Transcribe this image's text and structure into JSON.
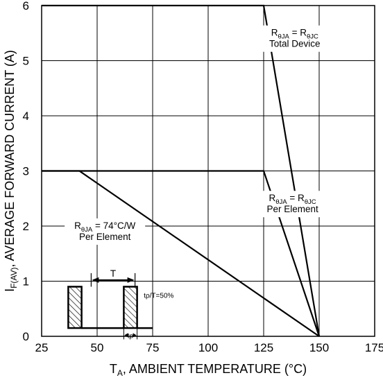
{
  "chart_data": {
    "type": "line",
    "xlabel": {
      "main": "T",
      "sub": "A",
      "rest": ", AMBIENT TEMPERATURE (°C)"
    },
    "ylabel": {
      "main": "I",
      "sub": "F(AV)",
      "rest": ", AVERAGE FORWARD CURRENT (A)"
    },
    "xlim": [
      25,
      175
    ],
    "ylim": [
      0,
      6
    ],
    "x_ticks": [
      25,
      50,
      75,
      100,
      125,
      150,
      175
    ],
    "y_ticks": [
      0,
      1,
      2,
      3,
      4,
      5,
      6
    ],
    "grid": true,
    "series": [
      {
        "x": [
          25,
          125,
          150
        ],
        "y": [
          6,
          6,
          0
        ]
      },
      {
        "x": [
          25,
          125,
          150
        ],
        "y": [
          3,
          3,
          0
        ]
      },
      {
        "x": [
          25,
          42,
          150
        ],
        "y": [
          3,
          3,
          0
        ]
      }
    ],
    "annotations": [
      {
        "x": 139,
        "y": 5.45,
        "lines": [
          {
            "t": "R",
            "s": "θJA",
            "t2": " = R",
            "s2": "θJC"
          },
          {
            "t": "Total Device"
          }
        ]
      },
      {
        "x": 138,
        "y": 2.45,
        "lines": [
          {
            "t": "R",
            "s": "θJA",
            "t2": " = R",
            "s2": "θJC"
          },
          {
            "t": "Per Element"
          }
        ]
      },
      {
        "x": 53.5,
        "y": 1.95,
        "lines": [
          {
            "t": "R",
            "s": "θJA",
            "t2": " = 74°C/W"
          },
          {
            "t": "Per Element"
          }
        ]
      }
    ],
    "inset": {
      "period_label": "T",
      "pulse_label": "tρ",
      "duty_label": "tρ/T=50%"
    }
  }
}
